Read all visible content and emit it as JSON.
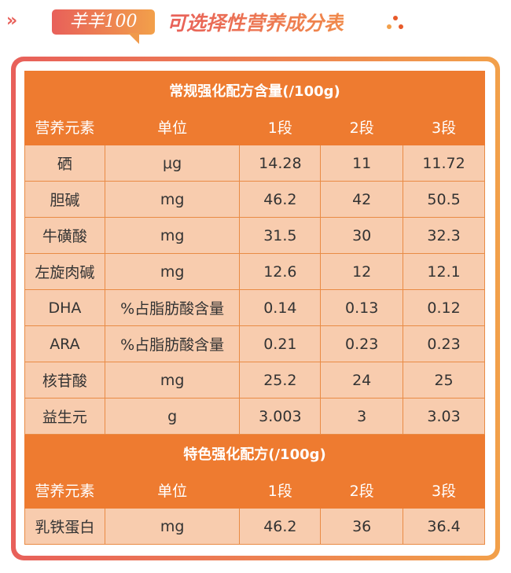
{
  "header": {
    "badge": "羊羊100",
    "title": "可选择性营养成分表",
    "chevron_icon": "double-chevron-right",
    "colors": {
      "accent": "#ee7b30",
      "gradient_start": "#e8605a",
      "gradient_end": "#f2a04a",
      "cell": "#f8ccae"
    }
  },
  "sections": [
    {
      "title": "常规强化配方含量(/100g)",
      "columns": [
        "营养元素",
        "单位",
        "1段",
        "2段",
        "3段"
      ],
      "rows": [
        [
          "硒",
          "μg",
          "14.28",
          "11",
          "11.72"
        ],
        [
          "胆碱",
          "mg",
          "46.2",
          "42",
          "50.5"
        ],
        [
          "牛磺酸",
          "mg",
          "31.5",
          "30",
          "32.3"
        ],
        [
          "左旋肉碱",
          "mg",
          "12.6",
          "12",
          "12.1"
        ],
        [
          "DHA",
          "%占脂肪酸含量",
          "0.14",
          "0.13",
          "0.12"
        ],
        [
          "ARA",
          "%占脂肪酸含量",
          "0.21",
          "0.23",
          "0.23"
        ],
        [
          "核苷酸",
          "mg",
          "25.2",
          "24",
          "25"
        ],
        [
          "益生元",
          "g",
          "3.003",
          "3",
          "3.03"
        ]
      ]
    },
    {
      "title": "特色强化配方(/100g)",
      "columns": [
        "营养元素",
        "单位",
        "1段",
        "2段",
        "3段"
      ],
      "rows": [
        [
          "乳铁蛋白",
          "mg",
          "46.2",
          "36",
          "36.4"
        ]
      ]
    }
  ]
}
